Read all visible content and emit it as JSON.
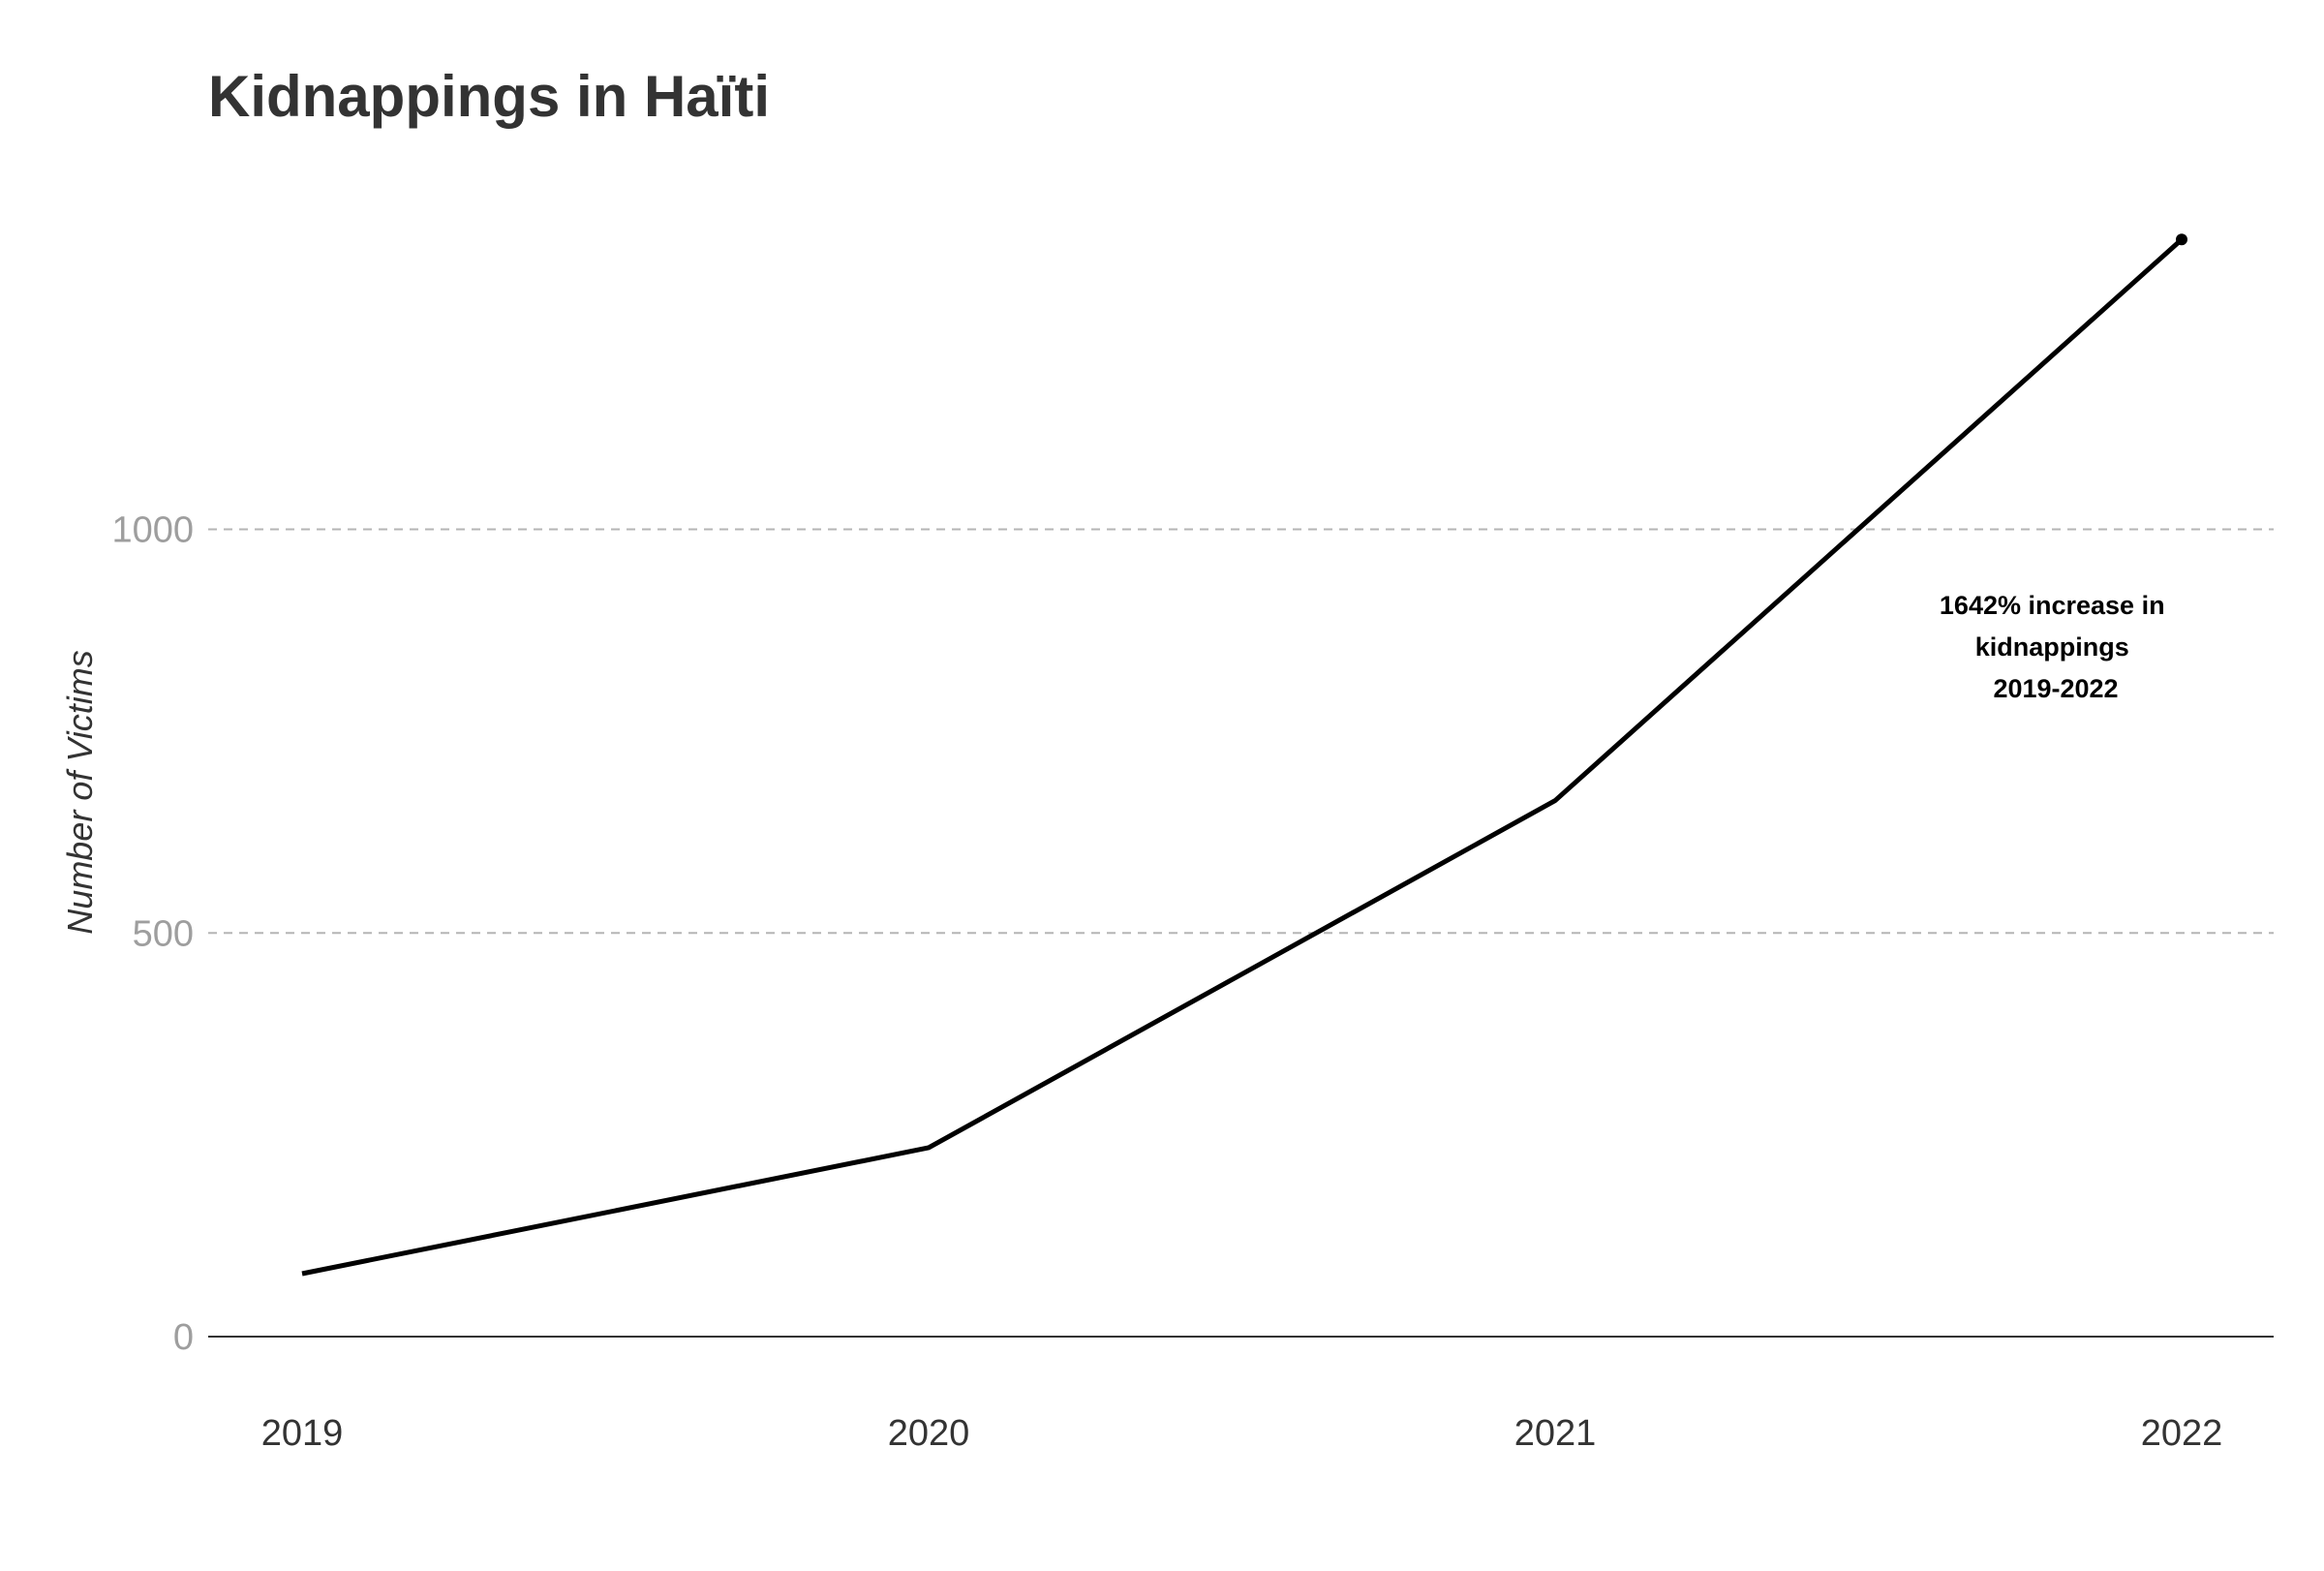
{
  "chart_data": {
    "type": "line",
    "title": "Kidnappings in Haïti",
    "ylabel": "Number of Victims",
    "xlabel": "",
    "x": [
      "2019",
      "2020",
      "2021",
      "2022"
    ],
    "series": [
      {
        "values": [
          78,
          234,
          664,
          1359
        ]
      }
    ],
    "ylim": [
      0,
      1360
    ],
    "yticks": [
      0,
      500,
      1000
    ],
    "grid": "horizontal-dashed",
    "annotation": {
      "lines": [
        "1642% increase in",
        "kidnappings",
        "2019-2022"
      ],
      "x": "2021-2022",
      "y": 850
    },
    "colors": {
      "line": "#000000",
      "grid": "#b5b5b5",
      "title": "#333333",
      "tick": "#9e9e9e"
    }
  }
}
